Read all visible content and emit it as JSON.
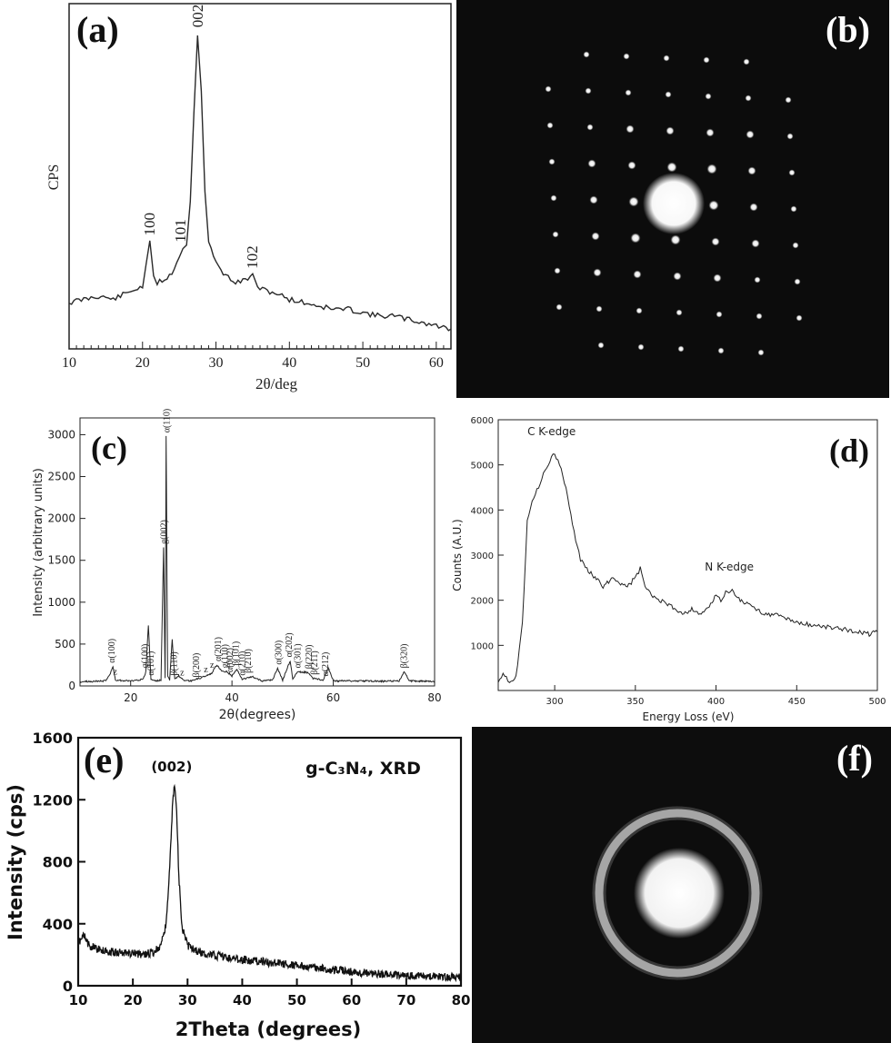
{
  "panels": {
    "a": {
      "label": "(a)"
    },
    "b": {
      "label": "(b)"
    },
    "c": {
      "label": "(c)"
    },
    "d": {
      "label": "(d)"
    },
    "e": {
      "label": "(e)"
    },
    "f": {
      "label": "(f)"
    }
  },
  "colors": {
    "line": "#1a1a1a",
    "background": "#ffffff",
    "pattern_bg": "#0b0b0b",
    "spot": "#f4f4f4"
  },
  "chart_data": [
    {
      "panel": "a",
      "type": "line",
      "xlabel": "2θ/deg",
      "ylabel": "CPS",
      "xlim": [
        10,
        62
      ],
      "ylim": [
        0,
        100
      ],
      "xticks": [
        "10",
        "20",
        "30",
        "40",
        "50",
        "60"
      ],
      "grid": false,
      "series": [
        {
          "x": [
            10,
            12,
            14,
            16,
            18,
            19,
            20,
            20.5,
            21,
            21.5,
            22,
            23,
            24,
            25,
            25.5,
            26,
            26.5,
            27,
            27.5,
            28,
            28.5,
            29,
            30,
            31,
            32,
            33,
            34,
            35,
            36,
            38,
            40,
            42,
            44,
            46,
            48,
            50,
            52,
            54,
            56,
            58,
            60,
            62
          ],
          "y": [
            14,
            15,
            16,
            15,
            17,
            18,
            19,
            25,
            32,
            22,
            20,
            21,
            23,
            28,
            30,
            32,
            45,
            72,
            95,
            78,
            48,
            32,
            26,
            23,
            21,
            20,
            21,
            22,
            18,
            17,
            15,
            14,
            13,
            12,
            12,
            11,
            10,
            10,
            9,
            8,
            7,
            6
          ]
        }
      ],
      "annotations": [
        {
          "text": "100",
          "x": 21,
          "y": 32
        },
        {
          "text": "101",
          "x": 25.2,
          "y": 30
        },
        {
          "text": "002",
          "x": 27.6,
          "y": 95
        },
        {
          "text": "102",
          "x": 35,
          "y": 22
        }
      ]
    },
    {
      "panel": "c",
      "type": "line",
      "xlabel": "2θ(degrees)",
      "ylabel": "Intensity (arbitrary units)",
      "xlim": [
        10,
        80
      ],
      "ylim": [
        0,
        3200
      ],
      "xticks": [
        "20",
        "40",
        "60",
        "80"
      ],
      "yticks": [
        "0",
        "500",
        "1000",
        "1500",
        "2000",
        "2500",
        "3000"
      ],
      "grid": false,
      "series": [
        {
          "x": [
            10,
            15,
            16,
            16.5,
            17,
            20,
            22.5,
            23,
            23.5,
            24,
            25,
            26,
            26.5,
            26.8,
            27,
            27.3,
            27.7,
            28.2,
            28.7,
            29.5,
            30.5,
            32,
            34,
            36,
            37,
            38,
            39,
            40,
            41,
            42,
            44,
            46,
            48,
            49,
            50,
            51.5,
            52,
            53,
            55,
            56,
            58,
            59,
            60,
            65,
            70,
            73,
            74,
            75,
            80
          ],
          "y": [
            50,
            60,
            150,
            230,
            70,
            60,
            80,
            170,
            730,
            80,
            60,
            70,
            1650,
            90,
            2980,
            120,
            70,
            560,
            80,
            120,
            60,
            60,
            100,
            150,
            250,
            180,
            170,
            120,
            200,
            80,
            110,
            60,
            70,
            210,
            70,
            300,
            80,
            170,
            160,
            90,
            70,
            220,
            60,
            60,
            55,
            60,
            170,
            60,
            55
          ]
        }
      ],
      "annotations": [
        {
          "text": "α(100)",
          "x": 16.3
        },
        {
          "text": "z",
          "x": 17.1
        },
        {
          "text": "g(100)",
          "x": 22.8
        },
        {
          "text": "α(101)",
          "x": 24
        },
        {
          "text": "g(002)",
          "x": 26.6
        },
        {
          "text": "α(110)",
          "x": 27.1
        },
        {
          "text": "β(110)",
          "x": 28.6
        },
        {
          "text": "z",
          "x": 30.3
        },
        {
          "text": "β(200)",
          "x": 33
        },
        {
          "text": "z",
          "x": 35
        },
        {
          "text": "z",
          "x": 36.2
        },
        {
          "text": "α(201)",
          "x": 37.3
        },
        {
          "text": "g(110)",
          "x": 38.6
        },
        {
          "text": "α(002)",
          "x": 39.6
        },
        {
          "text": "β(101)",
          "x": 40.8
        },
        {
          "text": "α(210)",
          "x": 42
        },
        {
          "text": "β(210)",
          "x": 43.2
        },
        {
          "text": "α(300)",
          "x": 49.2
        },
        {
          "text": "α(202)",
          "x": 51.3
        },
        {
          "text": "α(301)",
          "x": 53
        },
        {
          "text": "β(220)",
          "x": 55.2
        },
        {
          "text": "β(211)",
          "x": 56.3
        },
        {
          "text": "α(212)",
          "x": 58.5
        },
        {
          "text": "β(320)",
          "x": 74
        }
      ]
    },
    {
      "panel": "d",
      "type": "line",
      "xlabel": "Energy Loss (eV)",
      "ylabel": "Counts (A.U.)",
      "xlim": [
        265,
        500
      ],
      "ylim": [
        0,
        6000
      ],
      "xticks": [
        "300",
        "350",
        "400",
        "450",
        "500"
      ],
      "yticks": [
        "1000",
        "2000",
        "3000",
        "4000",
        "5000",
        "6000"
      ],
      "grid": false,
      "series": [
        {
          "x": [
            265,
            268,
            272,
            276,
            280,
            283,
            286,
            290,
            294,
            297,
            300,
            304,
            308,
            312,
            316,
            320,
            325,
            330,
            336,
            340,
            345,
            350,
            353,
            356,
            360,
            365,
            370,
            375,
            380,
            385,
            390,
            395,
            400,
            403,
            406,
            410,
            415,
            420,
            425,
            430,
            440,
            450,
            460,
            470,
            480,
            490,
            495,
            500
          ],
          "y": [
            200,
            400,
            200,
            300,
            1500,
            3800,
            4200,
            4500,
            4900,
            5100,
            5250,
            4900,
            4300,
            3500,
            2900,
            2700,
            2500,
            2300,
            2500,
            2400,
            2300,
            2500,
            2700,
            2300,
            2100,
            2000,
            1900,
            1800,
            1700,
            1800,
            1700,
            1800,
            2100,
            2000,
            2200,
            2200,
            2000,
            1900,
            1800,
            1700,
            1650,
            1500,
            1450,
            1400,
            1350,
            1300,
            1250,
            1300
          ]
        }
      ],
      "annotations": [
        {
          "text": "C K-edge",
          "x": 300,
          "y": 5300
        },
        {
          "text": "N K-edge",
          "x": 410,
          "y": 2300
        }
      ]
    },
    {
      "panel": "e",
      "type": "line",
      "xlabel": "2Theta (degrees)",
      "ylabel": "Intensity (cps)",
      "xlim": [
        10,
        80
      ],
      "ylim": [
        0,
        1600
      ],
      "xticks": [
        "10",
        "20",
        "30",
        "40",
        "50",
        "60",
        "70",
        "80"
      ],
      "yticks": [
        "0",
        "400",
        "800",
        "1200",
        "1600"
      ],
      "grid": false,
      "series": [
        {
          "x": [
            10,
            11,
            12,
            14,
            16,
            18,
            20,
            22,
            24,
            25,
            26,
            26.5,
            27,
            27.3,
            27.6,
            28,
            28.4,
            29,
            30,
            32,
            34,
            36,
            40,
            45,
            50,
            55,
            60,
            65,
            70,
            75,
            80
          ],
          "y": [
            280,
            320,
            260,
            230,
            220,
            210,
            210,
            200,
            220,
            260,
            380,
            600,
            950,
            1200,
            1290,
            1150,
            700,
            380,
            260,
            220,
            200,
            190,
            170,
            150,
            130,
            110,
            90,
            75,
            65,
            60,
            55
          ]
        }
      ],
      "annotations": [
        {
          "text": "(002)",
          "x": 27.6,
          "y": 1290
        },
        {
          "text": "g-C₃N₄, XRD"
        }
      ]
    }
  ]
}
